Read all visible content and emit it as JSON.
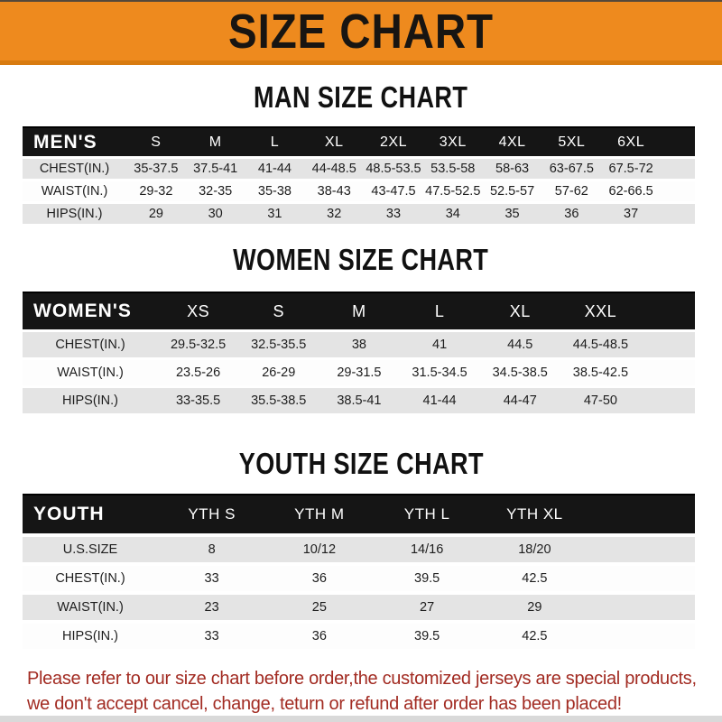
{
  "banner": {
    "title": "SIZE CHART"
  },
  "men": {
    "title": "MAN SIZE CHART",
    "label": "MEN'S",
    "sizes": [
      "S",
      "M",
      "L",
      "XL",
      "2XL",
      "3XL",
      "4XL",
      "5XL",
      "6XL"
    ],
    "rows": [
      {
        "label": "CHEST(IN.)",
        "values": [
          "35-37.5",
          "37.5-41",
          "41-44",
          "44-48.5",
          "48.5-53.5",
          "53.5-58",
          "58-63",
          "63-67.5",
          "67.5-72"
        ]
      },
      {
        "label": "WAIST(IN.)",
        "values": [
          "29-32",
          "32-35",
          "35-38",
          "38-43",
          "43-47.5",
          "47.5-52.5",
          "52.5-57",
          "57-62",
          "62-66.5"
        ]
      },
      {
        "label": "HIPS(IN.)",
        "values": [
          "29",
          "30",
          "31",
          "32",
          "33",
          "34",
          "35",
          "36",
          "37"
        ]
      }
    ]
  },
  "women": {
    "title": "WOMEN SIZE CHART",
    "label": "WOMEN'S",
    "sizes": [
      "XS",
      "S",
      "M",
      "L",
      "XL",
      "XXL"
    ],
    "rows": [
      {
        "label": "CHEST(IN.)",
        "values": [
          "29.5-32.5",
          "32.5-35.5",
          "38",
          "41",
          "44.5",
          "44.5-48.5"
        ]
      },
      {
        "label": "WAIST(IN.)",
        "values": [
          "23.5-26",
          "26-29",
          "29-31.5",
          "31.5-34.5",
          "34.5-38.5",
          "38.5-42.5"
        ]
      },
      {
        "label": "HIPS(IN.)",
        "values": [
          "33-35.5",
          "35.5-38.5",
          "38.5-41",
          "41-44",
          "44-47",
          "47-50"
        ]
      }
    ]
  },
  "youth": {
    "title": "YOUTH SIZE CHART",
    "label": "YOUTH",
    "sizes": [
      "YTH S",
      "YTH M",
      "YTH L",
      "YTH XL"
    ],
    "rows": [
      {
        "label": "U.S.SIZE",
        "values": [
          "8",
          "10/12",
          "14/16",
          "18/20"
        ]
      },
      {
        "label": "CHEST(IN.)",
        "values": [
          "33",
          "36",
          "39.5",
          "42.5"
        ]
      },
      {
        "label": "WAIST(IN.)",
        "values": [
          "23",
          "25",
          "27",
          "29"
        ]
      },
      {
        "label": "HIPS(IN.)",
        "values": [
          "33",
          "36",
          "39.5",
          "42.5"
        ]
      }
    ]
  },
  "footer": {
    "line1": "Please refer to our size chart before order,the customized jerseys are special products,",
    "line2": "we don't accept cancel, change, teturn or refund after order has been placed!"
  },
  "colors": {
    "banner_orange": "#EE8A1E",
    "banner_orange_dark": "#D87B10",
    "header_bar_black": "#151515",
    "row_gray": "#E4E4E4",
    "footer_red": "#A22B22"
  }
}
